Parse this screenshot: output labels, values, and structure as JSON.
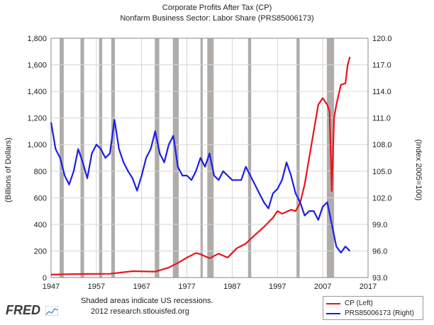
{
  "chart_data": {
    "type": "line",
    "title": "Corporate Profits After Tax (CP)",
    "subtitle": "Nonfarm Business Sector: Labor Share (PRS85006173)",
    "ylabel_left": "(Billions of Dollars)",
    "ylabel_right": "(Index 2005=100)",
    "x_ticks": [
      "1947",
      "1957",
      "1967",
      "1977",
      "1987",
      "1997",
      "2007",
      "2017"
    ],
    "xlim": [
      1947,
      2017
    ],
    "y_left_ticks": [
      "0",
      "200",
      "400",
      "600",
      "800",
      "1,000",
      "1,200",
      "1,400",
      "1,600",
      "1,800"
    ],
    "ylim_left": [
      0,
      1800
    ],
    "y_right_ticks": [
      "93.0",
      "96.0",
      "99.0",
      "102.0",
      "105.0",
      "108.0",
      "111.0",
      "114.0",
      "117.0",
      "120.0"
    ],
    "ylim_right": [
      93,
      120
    ],
    "recessions": [
      [
        1948.9,
        1949.8
      ],
      [
        1953.5,
        1954.3
      ],
      [
        1957.6,
        1958.3
      ],
      [
        1960.3,
        1961.1
      ],
      [
        1969.9,
        1970.9
      ],
      [
        1973.9,
        1975.2
      ],
      [
        1980.0,
        1980.5
      ],
      [
        1981.5,
        1982.9
      ],
      [
        1990.5,
        1991.2
      ],
      [
        2001.2,
        2001.9
      ],
      [
        2007.9,
        2009.5
      ]
    ],
    "series": [
      {
        "name": "CP (Left)",
        "axis": "left",
        "color": "#e8141b",
        "x": [
          1947,
          1950,
          1955,
          1960,
          1965,
          1970,
          1973,
          1975,
          1977,
          1979,
          1980,
          1982,
          1984,
          1986,
          1988,
          1990,
          1992,
          1994,
          1996,
          1997,
          1998,
          2000,
          2001,
          2002,
          2003,
          2004,
          2005,
          2006,
          2007,
          2008,
          2008.5,
          2009,
          2009.5,
          2010,
          2011,
          2012,
          2012.5,
          2013
        ],
        "values": [
          22,
          25,
          27,
          28,
          48,
          45,
          75,
          110,
          150,
          185,
          175,
          145,
          180,
          150,
          220,
          255,
          320,
          380,
          450,
          500,
          480,
          510,
          500,
          560,
          700,
          900,
          1100,
          1300,
          1350,
          1300,
          1250,
          650,
          1200,
          1300,
          1450,
          1460,
          1600,
          1660
        ]
      },
      {
        "name": "PRS85006173 (Right)",
        "axis": "right",
        "color": "#1c1fe6",
        "x": [
          1947,
          1948,
          1949,
          1950,
          1951,
          1952,
          1953,
          1954,
          1955,
          1956,
          1957,
          1958,
          1959,
          1960,
          1961,
          1962,
          1963,
          1964,
          1965,
          1966,
          1967,
          1968,
          1969,
          1970,
          1971,
          1972,
          1973,
          1974,
          1975,
          1976,
          1977,
          1978,
          1979,
          1980,
          1981,
          1982,
          1983,
          1984,
          1985,
          1986,
          1987,
          1988,
          1989,
          1990,
          1991,
          1992,
          1993,
          1994,
          1995,
          1996,
          1997,
          1998,
          1999,
          2000,
          2001,
          2002,
          2003,
          2004,
          2005,
          2006,
          2007,
          2008,
          2009,
          2010,
          2011,
          2012,
          2013
        ],
        "values": [
          110.5,
          107.5,
          106.5,
          104.5,
          103.5,
          105.0,
          107.5,
          106.0,
          104.2,
          107.0,
          108.0,
          107.5,
          106.5,
          107.0,
          110.8,
          107.5,
          106.0,
          105.0,
          104.2,
          102.8,
          104.5,
          106.5,
          107.5,
          109.5,
          107.0,
          106.0,
          108.0,
          109.0,
          105.5,
          104.5,
          104.5,
          104.0,
          105.0,
          106.5,
          105.5,
          107.0,
          104.5,
          104.0,
          105.0,
          104.5,
          104.0,
          104.0,
          104.0,
          105.5,
          104.5,
          103.5,
          102.5,
          101.5,
          100.8,
          102.5,
          103.0,
          104.0,
          106.0,
          104.5,
          102.5,
          101.5,
          100.0,
          100.5,
          100.5,
          99.5,
          101.0,
          101.5,
          99.0,
          96.5,
          95.8,
          96.5,
          96.0
        ]
      }
    ],
    "legend": [
      "CP (Left)",
      "PRS85006173 (Right)"
    ]
  },
  "footer": {
    "brand": "FRED",
    "note_line1": "Shaded areas indicate US recessions.",
    "note_line2": "2012 research.stlouisfed.org"
  }
}
